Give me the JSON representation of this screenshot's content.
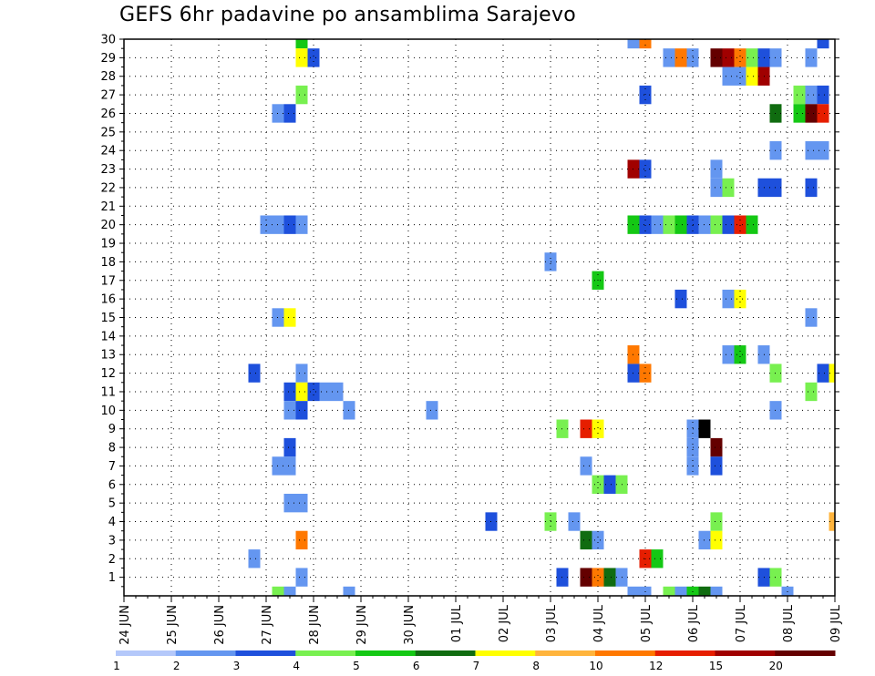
{
  "title": "GEFS 6hr padavine po ansamblima Sarajevo",
  "chart_data": {
    "type": "heatmap",
    "title": "GEFS 6hr padavine po ansamblima Sarajevo",
    "x_ticks": [
      "24 JUN",
      "25 JUN",
      "26 JUN",
      "27 JUN",
      "28 JUN",
      "29 JUN",
      "30 JUN",
      "01 JUL",
      "02 JUL",
      "03 JUL",
      "04 JUL",
      "05 JUL",
      "06 JUL",
      "07 JUL",
      "08 JUL",
      "09 JUL"
    ],
    "y_ticks": [
      1,
      2,
      3,
      4,
      5,
      6,
      7,
      8,
      9,
      10,
      11,
      12,
      13,
      14,
      15,
      16,
      17,
      18,
      19,
      20,
      21,
      22,
      23,
      24,
      25,
      26,
      27,
      28,
      29,
      30
    ],
    "xlim": [
      0,
      60
    ],
    "ylim": [
      0,
      30
    ],
    "grid": true,
    "x_unit": "6-hour steps from 24 JUN 00 UTC",
    "colorbar": {
      "labels": [
        "1",
        "2",
        "3",
        "4",
        "5",
        "6",
        "7",
        "8",
        "10",
        "12",
        "15",
        "20"
      ],
      "colors": [
        "#b4c8fa",
        "#6496f0",
        "#1e50dc",
        "#78f050",
        "#14c814",
        "#106c10",
        "#ffff00",
        "#ffb43c",
        "#ff7800",
        "#e61e00",
        "#a00000",
        "#640000"
      ]
    },
    "cells": [
      [
        15,
        30,
        4
      ],
      [
        43,
        30,
        1
      ],
      [
        44,
        30,
        8
      ],
      [
        59,
        30,
        2
      ],
      [
        15,
        29,
        6
      ],
      [
        16,
        29,
        2
      ],
      [
        46,
        29,
        1
      ],
      [
        47,
        29,
        8
      ],
      [
        48,
        29,
        1
      ],
      [
        50,
        29,
        11
      ],
      [
        51,
        29,
        10
      ],
      [
        52,
        29,
        8
      ],
      [
        53,
        29,
        3
      ],
      [
        54,
        29,
        2
      ],
      [
        55,
        29,
        1
      ],
      [
        58,
        29,
        1
      ],
      [
        51,
        28,
        1
      ],
      [
        52,
        28,
        1
      ],
      [
        53,
        28,
        6
      ],
      [
        54,
        28,
        10
      ],
      [
        15,
        27,
        3
      ],
      [
        44,
        27,
        2
      ],
      [
        57,
        27,
        3
      ],
      [
        58,
        27,
        1
      ],
      [
        59,
        27,
        2
      ],
      [
        13,
        26,
        1
      ],
      [
        14,
        26,
        2
      ],
      [
        55,
        26,
        5
      ],
      [
        57,
        26,
        4
      ],
      [
        58,
        26,
        11
      ],
      [
        59,
        26,
        9
      ],
      [
        55,
        24,
        1
      ],
      [
        58,
        24,
        1
      ],
      [
        59,
        24,
        1
      ],
      [
        43,
        23,
        10
      ],
      [
        44,
        23,
        2
      ],
      [
        50,
        23,
        1
      ],
      [
        50,
        22,
        1
      ],
      [
        51,
        22,
        3
      ],
      [
        54,
        22,
        2
      ],
      [
        55,
        22,
        2
      ],
      [
        58,
        22,
        2
      ],
      [
        12,
        20,
        1
      ],
      [
        13,
        20,
        1
      ],
      [
        14,
        20,
        2
      ],
      [
        15,
        20,
        1
      ],
      [
        43,
        20,
        4
      ],
      [
        44,
        20,
        2
      ],
      [
        45,
        20,
        1
      ],
      [
        46,
        20,
        3
      ],
      [
        47,
        20,
        4
      ],
      [
        48,
        20,
        2
      ],
      [
        49,
        20,
        1
      ],
      [
        50,
        20,
        3
      ],
      [
        51,
        20,
        2
      ],
      [
        52,
        20,
        9
      ],
      [
        53,
        20,
        4
      ],
      [
        36,
        18,
        1
      ],
      [
        40,
        17,
        4
      ],
      [
        47,
        16,
        2
      ],
      [
        51,
        16,
        1
      ],
      [
        52,
        16,
        6
      ],
      [
        13,
        15,
        1
      ],
      [
        14,
        15,
        6
      ],
      [
        58,
        15,
        1
      ],
      [
        43,
        13,
        8
      ],
      [
        51,
        13,
        1
      ],
      [
        52,
        13,
        4
      ],
      [
        54,
        13,
        1
      ],
      [
        11,
        12,
        2
      ],
      [
        15,
        12,
        1
      ],
      [
        43,
        12,
        2
      ],
      [
        44,
        12,
        8
      ],
      [
        55,
        12,
        3
      ],
      [
        59,
        12,
        2
      ],
      [
        60,
        12,
        6
      ],
      [
        14,
        11,
        2
      ],
      [
        15,
        11,
        6
      ],
      [
        16,
        11,
        2
      ],
      [
        17,
        11,
        1
      ],
      [
        18,
        11,
        1
      ],
      [
        58,
        11,
        3
      ],
      [
        14,
        10,
        1
      ],
      [
        15,
        10,
        2
      ],
      [
        19,
        10,
        1
      ],
      [
        26,
        10,
        1
      ],
      [
        55,
        10,
        1
      ],
      [
        37,
        9,
        3
      ],
      [
        39,
        9,
        9
      ],
      [
        40,
        9,
        6
      ],
      [
        48,
        9,
        1
      ],
      [
        49,
        9,
        12
      ],
      [
        14,
        8,
        2
      ],
      [
        48,
        8,
        1
      ],
      [
        50,
        8,
        11
      ],
      [
        13,
        7,
        1
      ],
      [
        14,
        7,
        1
      ],
      [
        39,
        7,
        1
      ],
      [
        48,
        7,
        1
      ],
      [
        50,
        7,
        2
      ],
      [
        40,
        6,
        3
      ],
      [
        41,
        6,
        2
      ],
      [
        42,
        6,
        3
      ],
      [
        14,
        5,
        1
      ],
      [
        15,
        5,
        1
      ],
      [
        31,
        4,
        2
      ],
      [
        36,
        4,
        3
      ],
      [
        38,
        4,
        1
      ],
      [
        50,
        4,
        3
      ],
      [
        60,
        4,
        7
      ],
      [
        15,
        3,
        8
      ],
      [
        39,
        3,
        5
      ],
      [
        40,
        3,
        1
      ],
      [
        49,
        3,
        1
      ],
      [
        50,
        3,
        6
      ],
      [
        11,
        2,
        1
      ],
      [
        44,
        2,
        9
      ],
      [
        45,
        2,
        4
      ],
      [
        15,
        1,
        1
      ],
      [
        37,
        1,
        2
      ],
      [
        39,
        1,
        11
      ],
      [
        40,
        1,
        8
      ],
      [
        41,
        1,
        5
      ],
      [
        42,
        1,
        1
      ],
      [
        54,
        1,
        2
      ],
      [
        55,
        1,
        3
      ],
      [
        13,
        0,
        3
      ],
      [
        14,
        0,
        1
      ],
      [
        19,
        0,
        1
      ],
      [
        43,
        0,
        1
      ],
      [
        44,
        0,
        1
      ],
      [
        46,
        0,
        3
      ],
      [
        47,
        0,
        1
      ],
      [
        48,
        0,
        4
      ],
      [
        49,
        0,
        5
      ],
      [
        50,
        0,
        1
      ],
      [
        56,
        0,
        1
      ]
    ]
  }
}
